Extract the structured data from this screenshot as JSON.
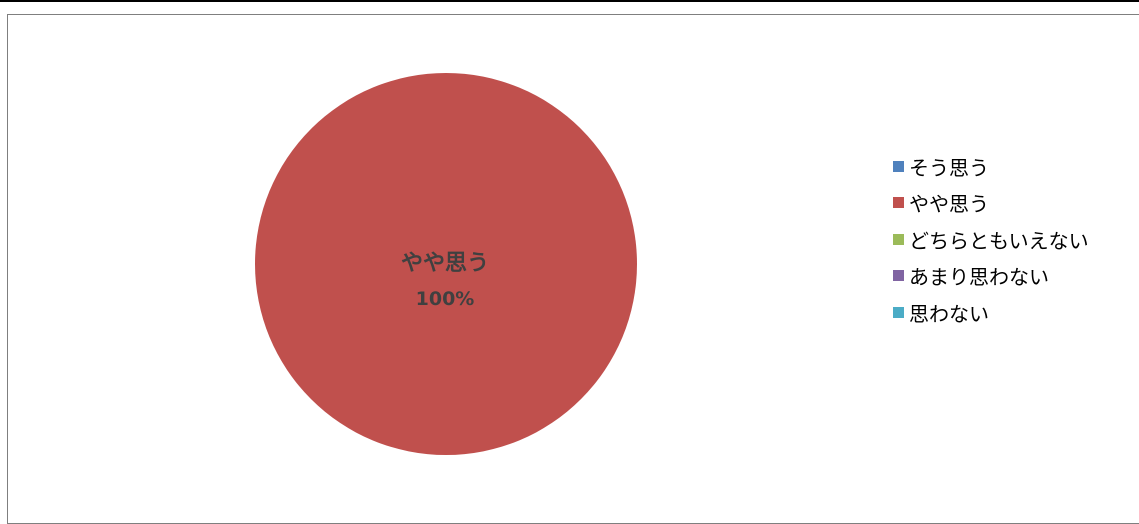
{
  "chart_data": {
    "type": "pie",
    "categories": [
      "そう思う",
      "やや思う",
      "どちらともいえない",
      "あまり思わない",
      "思わない"
    ],
    "values": [
      0,
      100,
      0,
      0,
      0
    ],
    "colors": [
      "#4f81bd",
      "#c0504d",
      "#9bbb59",
      "#8064a2",
      "#4bacc6"
    ],
    "data_labels": [
      {
        "category": "やや思う",
        "percent": "100%"
      }
    ],
    "legend_position": "right",
    "title": ""
  }
}
